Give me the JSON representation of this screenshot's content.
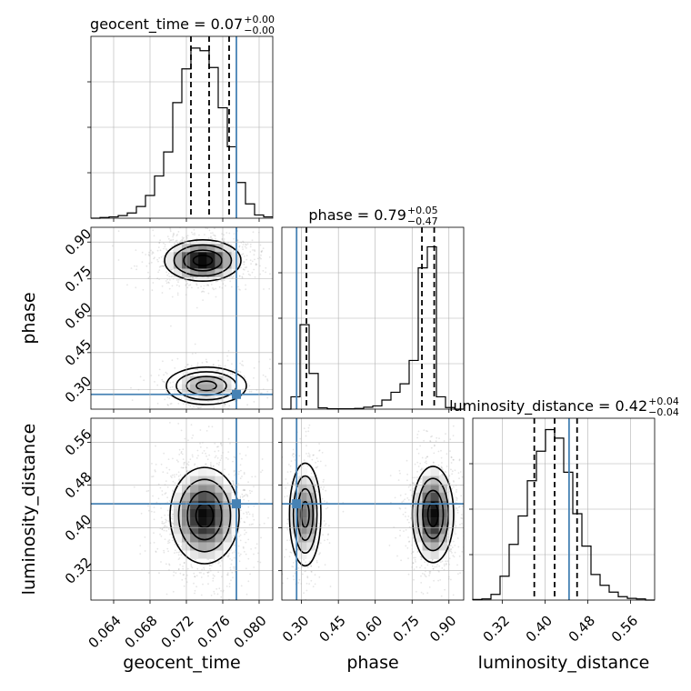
{
  "chart_data": {
    "type": "corner",
    "params": [
      "geocent_time",
      "phase",
      "luminosity_distance"
    ],
    "truths": [
      0.0775,
      0.28,
      0.445
    ],
    "ranges": [
      [
        0.0615,
        0.0815
      ],
      [
        0.22,
        0.96
      ],
      [
        0.265,
        0.605
      ]
    ],
    "ticks": {
      "geocent_time": [
        "0.064",
        "0.068",
        "0.072",
        "0.076",
        "0.080"
      ],
      "phase": [
        "0.30",
        "0.45",
        "0.60",
        "0.75",
        "0.90"
      ],
      "luminosity_distance": [
        "0.32",
        "0.40",
        "0.48",
        "0.56"
      ]
    },
    "titles": [
      {
        "param": "geocent_time",
        "median": "0.07",
        "plus": "+0.00",
        "minus": "−0.00",
        "label": "geocent_time = 0.07"
      },
      {
        "param": "phase",
        "median": "0.79",
        "plus": "+0.05",
        "minus": "−0.47",
        "label": "phase = 0.79"
      },
      {
        "param": "luminosity_distance",
        "median": "0.42",
        "plus": "+0.04",
        "minus": "−0.04",
        "label": "luminosity_distance = 0.42"
      }
    ],
    "histograms": [
      {
        "param": "geocent_time",
        "edges": [
          0.0615,
          0.0625,
          0.0635,
          0.0645,
          0.0655,
          0.0665,
          0.0675,
          0.0685,
          0.0695,
          0.0705,
          0.0715,
          0.0725,
          0.0735,
          0.0745,
          0.0755,
          0.0765,
          0.0775,
          0.0785,
          0.0795,
          0.0805,
          0.0815
        ],
        "counts": [
          0,
          1,
          2,
          4,
          8,
          18,
          35,
          65,
          102,
          178,
          230,
          262,
          258,
          232,
          170,
          110,
          55,
          22,
          5,
          2
        ],
        "quantiles": [
          0.0725,
          0.0745,
          0.0767
        ],
        "ymax": 280
      },
      {
        "param": "phase",
        "edges": [
          0.22,
          0.257,
          0.294,
          0.331,
          0.368,
          0.405,
          0.442,
          0.479,
          0.516,
          0.553,
          0.59,
          0.627,
          0.664,
          0.701,
          0.738,
          0.775,
          0.812,
          0.849,
          0.886,
          0.923,
          0.96
        ],
        "counts": [
          0,
          38,
          260,
          110,
          4,
          1,
          1,
          1,
          2,
          6,
          10,
          28,
          52,
          78,
          150,
          435,
          500,
          38,
          5,
          0
        ],
        "quantiles": [
          0.32,
          0.79,
          0.84
        ],
        "ymax": 560
      },
      {
        "param": "luminosity_distance",
        "edges": [
          0.265,
          0.282,
          0.299,
          0.316,
          0.333,
          0.35,
          0.367,
          0.384,
          0.401,
          0.418,
          0.435,
          0.452,
          0.469,
          0.486,
          0.503,
          0.52,
          0.537,
          0.554,
          0.571,
          0.588,
          0.605
        ],
        "counts": [
          1,
          2,
          10,
          42,
          98,
          148,
          210,
          262,
          300,
          285,
          225,
          152,
          95,
          45,
          26,
          14,
          6,
          3,
          2,
          0
        ],
        "quantiles": [
          0.38,
          0.418,
          0.46
        ],
        "ymax": 320
      }
    ],
    "panels_2d": [
      {
        "x": "geocent_time",
        "y": "phase",
        "modes": [
          {
            "cx": 0.0738,
            "cy": 0.825,
            "sx": 0.0021,
            "sy": 0.042,
            "weight": 0.7
          },
          {
            "cx": 0.0742,
            "cy": 0.315,
            "sx": 0.0022,
            "sy": 0.038,
            "weight": 0.3
          }
        ]
      },
      {
        "x": "geocent_time",
        "y": "luminosity_distance",
        "modes": [
          {
            "cx": 0.074,
            "cy": 0.423,
            "sx": 0.0019,
            "sy": 0.045,
            "weight": 1.0
          }
        ]
      },
      {
        "x": "phase",
        "y": "luminosity_distance",
        "modes": [
          {
            "cx": 0.315,
            "cy": 0.425,
            "sx": 0.032,
            "sy": 0.048,
            "weight": 0.35
          },
          {
            "cx": 0.835,
            "cy": 0.425,
            "sx": 0.042,
            "sy": 0.045,
            "weight": 0.65
          }
        ]
      }
    ],
    "grid": true,
    "colors": {
      "truth": "#4682b4",
      "hist": "#000000",
      "grid": "#b0b0b0",
      "points": "#bbbbbb"
    }
  }
}
